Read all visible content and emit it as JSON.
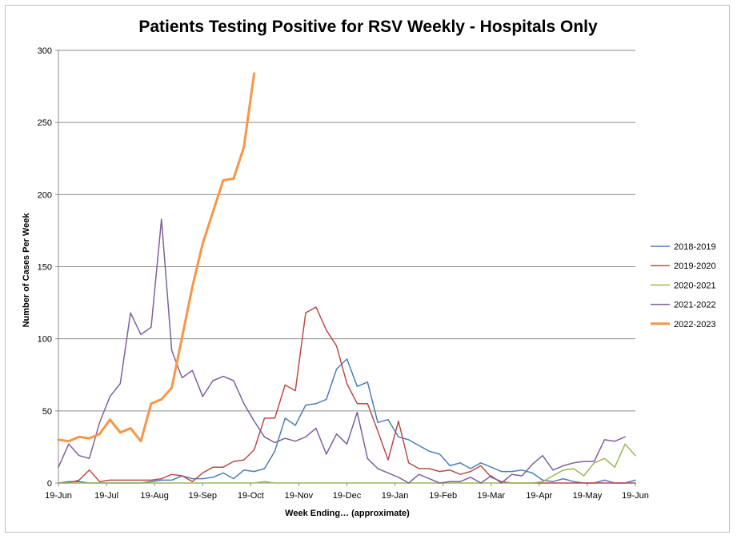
{
  "chart_data": {
    "type": "line",
    "title": "Patients Testing Positive for RSV Weekly - Hospitals Only",
    "xlabel": "Week Ending… (approximate)",
    "ylabel": "Number of Cases Per Week",
    "ylim": [
      0,
      300
    ],
    "yticks": [
      0,
      50,
      100,
      150,
      200,
      250,
      300
    ],
    "xticks": [
      "19-Jun",
      "19-Jul",
      "19-Aug",
      "19-Sep",
      "19-Oct",
      "19-Nov",
      "19-Dec",
      "19-Jan",
      "19-Feb",
      "19-Mar",
      "19-Apr",
      "19-May",
      "19-Jun"
    ],
    "x_axis_note": "week index 0 = week ending ~19-Jun; one point per week",
    "grid": "horizontal",
    "legend_position": "right",
    "series": [
      {
        "name": "2018-2019",
        "color": "#4a7ebb",
        "width": 1.5,
        "values": [
          0,
          1,
          1,
          0,
          0,
          0,
          0,
          0,
          0,
          1,
          2,
          2,
          5,
          3,
          3,
          4,
          7,
          3,
          9,
          8,
          10,
          22,
          45,
          40,
          54,
          55,
          58,
          79,
          86,
          67,
          70,
          42,
          44,
          32,
          30,
          26,
          22,
          20,
          12,
          14,
          10,
          14,
          11,
          8,
          8,
          9,
          7,
          2,
          1,
          3,
          1,
          0,
          0,
          2,
          0,
          0,
          2
        ]
      },
      {
        "name": "2019-2020",
        "color": "#be4b48",
        "width": 1.5,
        "values": [
          0,
          0,
          2,
          9,
          1,
          2,
          2,
          2,
          2,
          2,
          3,
          6,
          5,
          1,
          7,
          11,
          11,
          15,
          16,
          23,
          45,
          45,
          68,
          64,
          118,
          122,
          106,
          95,
          69,
          55,
          55,
          36,
          16,
          43,
          14,
          10,
          10,
          8,
          9,
          6,
          8,
          12,
          4,
          1,
          0,
          0,
          0,
          0,
          0,
          0,
          0,
          0,
          0,
          0,
          0,
          0,
          0
        ]
      },
      {
        "name": "2020-2021",
        "color": "#98b954",
        "width": 1.5,
        "values": [
          0,
          0,
          0,
          0,
          0,
          0,
          0,
          0,
          0,
          0,
          0,
          0,
          0,
          0,
          0,
          0,
          0,
          0,
          0,
          0,
          1,
          0,
          0,
          0,
          0,
          0,
          0,
          0,
          0,
          0,
          0,
          0,
          0,
          0,
          0,
          0,
          0,
          0,
          0,
          0,
          0,
          0,
          0,
          0,
          0,
          0,
          0,
          1,
          5,
          9,
          10,
          5,
          14,
          17,
          11,
          27,
          19
        ]
      },
      {
        "name": "2021-2022",
        "color": "#7d60a0",
        "width": 1.5,
        "values": [
          11,
          27,
          19,
          17,
          42,
          60,
          69,
          118,
          103,
          108,
          183,
          92,
          73,
          78,
          60,
          71,
          74,
          71,
          55,
          43,
          32,
          28,
          31,
          29,
          32,
          38,
          20,
          34,
          27,
          49,
          17,
          10,
          7,
          4,
          0,
          6,
          3,
          0,
          1,
          1,
          4,
          0,
          5,
          0,
          6,
          5,
          13,
          19,
          9,
          12,
          14,
          15,
          15,
          30,
          29,
          32
        ]
      },
      {
        "name": "2022-2023",
        "color": "#f79646",
        "width": 3,
        "values": [
          30,
          29,
          32,
          31,
          34,
          44,
          35,
          38,
          29,
          55,
          58,
          66,
          101,
          136,
          166,
          188,
          210,
          211,
          233,
          284
        ]
      }
    ]
  }
}
